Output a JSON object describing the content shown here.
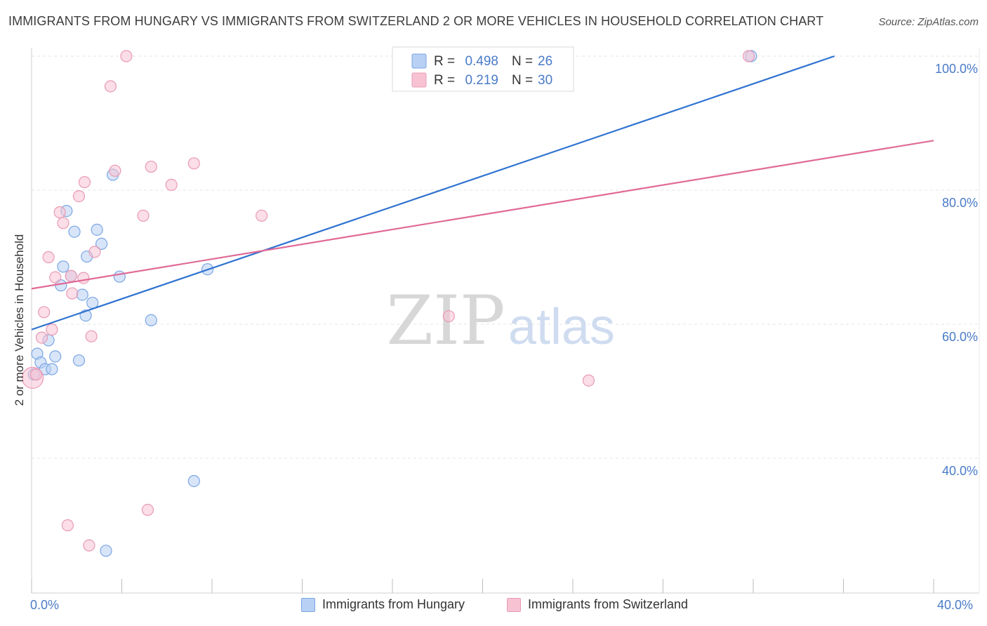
{
  "title": "IMMIGRANTS FROM HUNGARY VS IMMIGRANTS FROM SWITZERLAND 2 OR MORE VEHICLES IN HOUSEHOLD CORRELATION CHART",
  "source": "Source: ZipAtlas.com",
  "watermark": {
    "zip": "ZIP",
    "atlas": "atlas"
  },
  "colors": {
    "blue_fill": "#b8d0f4",
    "blue_stroke": "#7aa6e3",
    "blue_line": "#2f72d0",
    "pink_fill": "#f7c3d3",
    "pink_stroke": "#e89ab4",
    "pink_line": "#e06a96",
    "axis_text": "#4a7bc8",
    "grid": "#e4e4e4"
  },
  "chart_data": {
    "type": "scatter",
    "title": "IMMIGRANTS FROM HUNGARY VS IMMIGRANTS FROM SWITZERLAND 2 OR MORE VEHICLES IN HOUSEHOLD CORRELATION CHART",
    "xlabel": "",
    "ylabel": "2 or more Vehicles in Household",
    "xlim": [
      0,
      40
    ],
    "ylim": [
      20,
      102
    ],
    "x_tick_labels": [
      "0.0%",
      "40.0%"
    ],
    "y_ticks": [
      {
        "value": 40,
        "label": "40.0%"
      },
      {
        "value": 60,
        "label": "60.0%"
      },
      {
        "value": 80,
        "label": "80.0%"
      },
      {
        "value": 100,
        "label": "100.0%"
      }
    ],
    "x_tick_values": [
      0,
      4,
      8,
      12,
      16,
      20,
      24,
      28,
      32,
      36,
      40
    ],
    "grid": true,
    "legend_position": "top-center",
    "series": [
      {
        "name": "Immigrants from Hungary",
        "r_label": "R =",
        "r_value": "0.498",
        "n_label": "N =",
        "n_value": "26",
        "trend": {
          "x": [
            0,
            35.6
          ],
          "y": [
            59.2,
            100.0
          ]
        },
        "points": [
          {
            "x": 0.1,
            "y": 52.5
          },
          {
            "x": 0.25,
            "y": 55.6
          },
          {
            "x": 0.4,
            "y": 54.3
          },
          {
            "x": 0.6,
            "y": 53.3
          },
          {
            "x": 0.75,
            "y": 57.6
          },
          {
            "x": 0.9,
            "y": 53.3
          },
          {
            "x": 1.05,
            "y": 55.2
          },
          {
            "x": 1.3,
            "y": 65.8
          },
          {
            "x": 1.4,
            "y": 68.6
          },
          {
            "x": 1.55,
            "y": 76.9
          },
          {
            "x": 1.75,
            "y": 67.2
          },
          {
            "x": 1.9,
            "y": 73.8
          },
          {
            "x": 2.1,
            "y": 54.6
          },
          {
            "x": 2.25,
            "y": 64.4
          },
          {
            "x": 2.4,
            "y": 61.3
          },
          {
            "x": 2.45,
            "y": 70.1
          },
          {
            "x": 2.7,
            "y": 63.2
          },
          {
            "x": 2.9,
            "y": 74.1
          },
          {
            "x": 3.1,
            "y": 72.0
          },
          {
            "x": 3.3,
            "y": 26.2
          },
          {
            "x": 3.6,
            "y": 82.3
          },
          {
            "x": 3.9,
            "y": 67.1
          },
          {
            "x": 5.3,
            "y": 60.6
          },
          {
            "x": 7.2,
            "y": 36.6
          },
          {
            "x": 7.8,
            "y": 68.2
          },
          {
            "x": 31.9,
            "y": 100.0
          }
        ]
      },
      {
        "name": "Immigrants from Switzerland",
        "r_label": "R =",
        "r_value": "0.219",
        "n_label": "N =",
        "n_value": "30",
        "trend": {
          "x": [
            0,
            40
          ],
          "y": [
            65.3,
            87.4
          ]
        },
        "points": [
          {
            "x": 0.05,
            "y": 52.0
          },
          {
            "x": 0.2,
            "y": 52.5
          },
          {
            "x": 0.45,
            "y": 58.0
          },
          {
            "x": 0.55,
            "y": 61.8
          },
          {
            "x": 0.75,
            "y": 70.0
          },
          {
            "x": 0.9,
            "y": 59.2
          },
          {
            "x": 1.05,
            "y": 67.0
          },
          {
            "x": 1.25,
            "y": 76.7
          },
          {
            "x": 1.4,
            "y": 75.1
          },
          {
            "x": 1.6,
            "y": 30.0
          },
          {
            "x": 1.75,
            "y": 67.2
          },
          {
            "x": 1.8,
            "y": 64.6
          },
          {
            "x": 2.1,
            "y": 79.1
          },
          {
            "x": 2.3,
            "y": 66.9
          },
          {
            "x": 2.35,
            "y": 81.2
          },
          {
            "x": 2.55,
            "y": 27.0
          },
          {
            "x": 2.65,
            "y": 58.2
          },
          {
            "x": 2.8,
            "y": 70.8
          },
          {
            "x": 3.5,
            "y": 95.5
          },
          {
            "x": 3.7,
            "y": 82.9
          },
          {
            "x": 4.2,
            "y": 100.0
          },
          {
            "x": 4.95,
            "y": 76.2
          },
          {
            "x": 5.15,
            "y": 32.3
          },
          {
            "x": 5.3,
            "y": 83.5
          },
          {
            "x": 6.2,
            "y": 80.8
          },
          {
            "x": 7.2,
            "y": 84.0
          },
          {
            "x": 10.2,
            "y": 76.2
          },
          {
            "x": 18.5,
            "y": 61.2
          },
          {
            "x": 24.7,
            "y": 51.6
          },
          {
            "x": 31.8,
            "y": 100.0
          }
        ]
      }
    ]
  }
}
